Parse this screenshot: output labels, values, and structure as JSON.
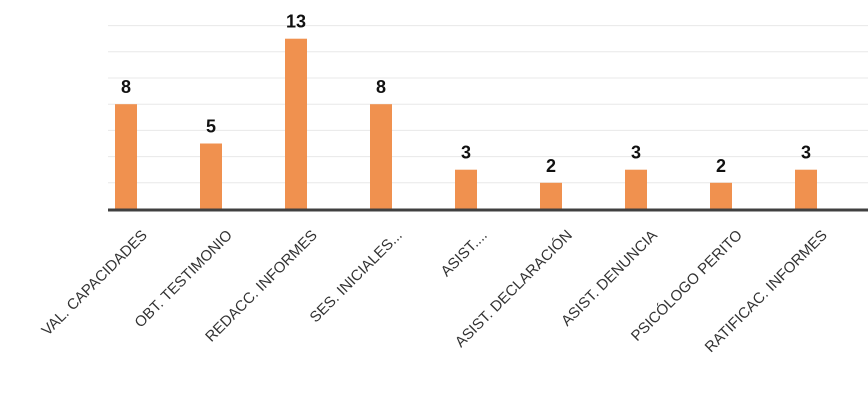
{
  "chart_data": {
    "type": "bar",
    "categories": [
      "VAL. CAPACIDADES",
      "OBT. TESTIMONIO",
      "REDACC. INFORMES",
      "SES. INICIALES...",
      "ASIST....",
      "ASIST. DECLARACIÓN",
      "ASIST. DENUNCIA",
      "PSICÓLOGO PERITO",
      "RATIFICAC. INFORMES"
    ],
    "values": [
      8,
      5,
      13,
      8,
      3,
      2,
      3,
      2,
      3
    ],
    "ylim": [
      0,
      15
    ],
    "grid": true,
    "data_labels": true,
    "bar_color": "#F0914F",
    "axis_color": "#404040",
    "grid_color": "#E8E8E8"
  }
}
